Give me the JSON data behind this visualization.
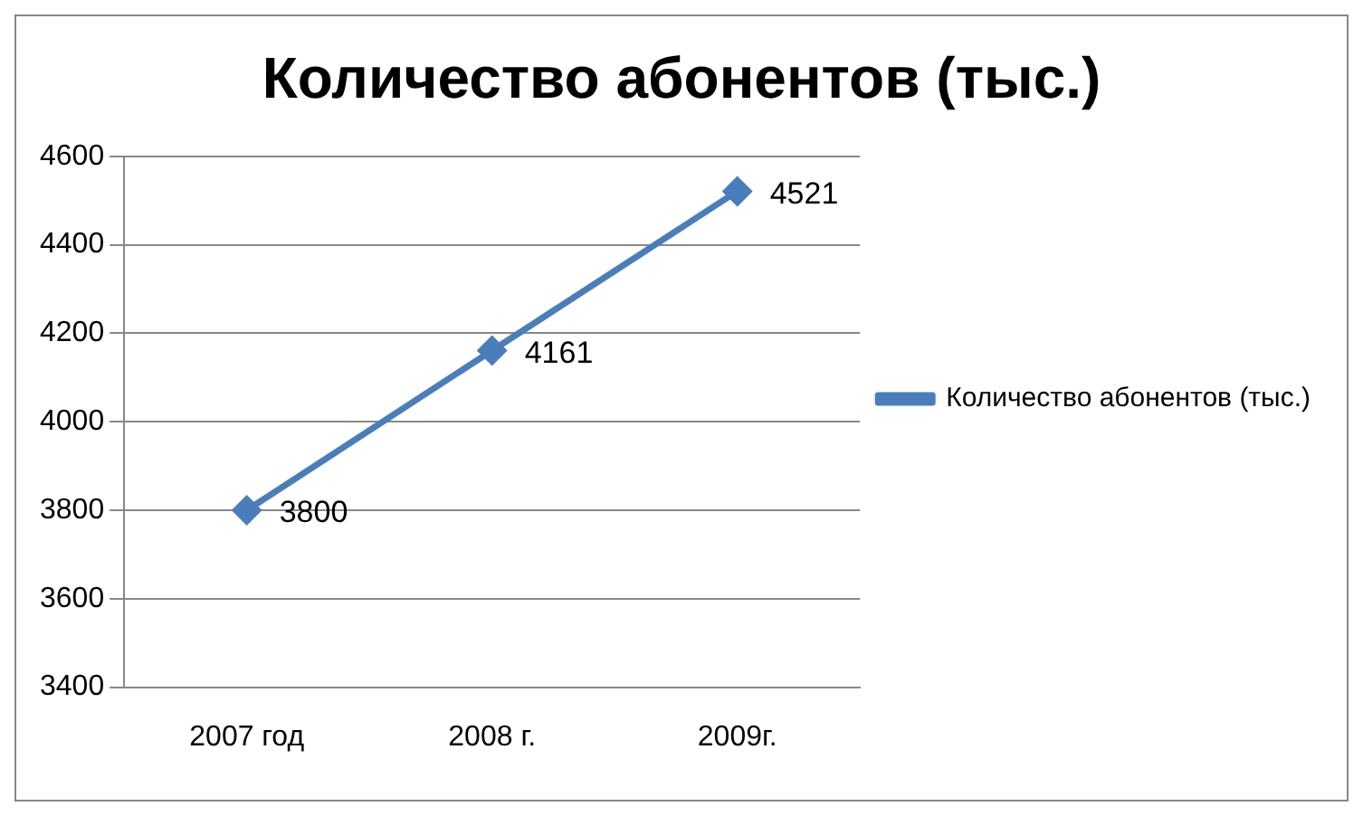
{
  "chart_data": {
    "type": "line",
    "title": "Количество абонентов (тыс.)",
    "categories": [
      "2007 год",
      "2008 г.",
      "2009г."
    ],
    "series": [
      {
        "name": "Количество абонентов (тыс.)",
        "color": "#4a7ebb",
        "values": [
          3800,
          4161,
          4521
        ]
      }
    ],
    "ylim": [
      3400,
      4600
    ],
    "yticks": [
      3400,
      3600,
      3800,
      4000,
      4200,
      4400,
      4600
    ],
    "grid": "y",
    "legend": "right",
    "marker": "diamond",
    "line_style": "solid",
    "data_labels": true
  }
}
